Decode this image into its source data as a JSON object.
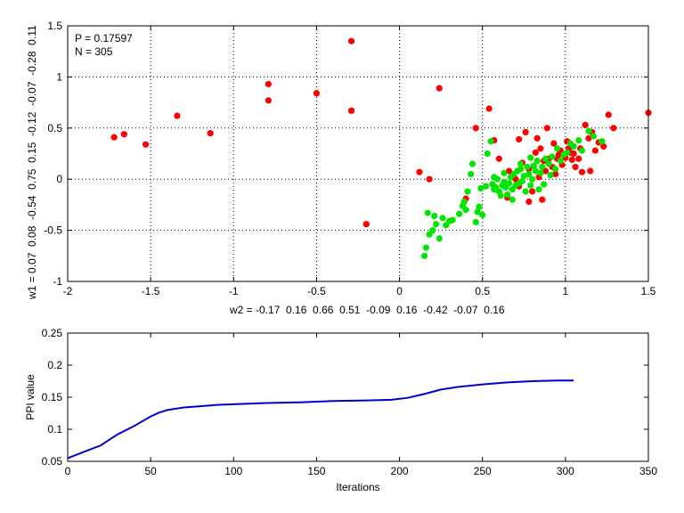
{
  "chart_data": [
    {
      "type": "scatter",
      "title": "",
      "xlabel": "w2 = -0.17  0.16  0.66  0.51  -0.09  0.16  -0.42  -0.07  0.16",
      "ylabel": "w1 = 0.07  0.08  -0.54  0.75  0.15  -0.12  -0.07  -0.28  0.11",
      "xlim": [
        -2,
        1.5
      ],
      "ylim": [
        -1,
        1.5
      ],
      "xticks": [
        "-2",
        "-1.5",
        "-1",
        "-0.5",
        "0",
        "0.5",
        "1",
        "1.5"
      ],
      "yticks": [
        "-1",
        "-0.5",
        "0",
        "0.5",
        "1",
        "1.5"
      ],
      "grid": true,
      "annotations": [
        "P = 0.17597",
        "N = 305"
      ],
      "series": [
        {
          "color": "#ff0000",
          "points": [
            [
              -1.72,
              0.41
            ],
            [
              -1.66,
              0.44
            ],
            [
              -1.53,
              0.34
            ],
            [
              -1.34,
              0.62
            ],
            [
              -1.14,
              0.45
            ],
            [
              -0.79,
              0.93
            ],
            [
              -0.79,
              0.77
            ],
            [
              -0.5,
              0.84
            ],
            [
              -0.29,
              0.67
            ],
            [
              -0.29,
              1.35
            ],
            [
              0.24,
              0.89
            ],
            [
              -0.2,
              -0.44
            ],
            [
              0.12,
              0.07
            ],
            [
              0.18,
              0.0
            ],
            [
              0.4,
              -0.19
            ],
            [
              0.46,
              0.5
            ],
            [
              0.54,
              0.69
            ],
            [
              0.57,
              0.38
            ],
            [
              0.6,
              0.2
            ],
            [
              0.66,
              0.08
            ],
            [
              0.7,
              0.0
            ],
            [
              0.72,
              0.39
            ],
            [
              0.74,
              0.16
            ],
            [
              0.76,
              0.46
            ],
            [
              0.78,
              0.1
            ],
            [
              0.8,
              -0.12
            ],
            [
              0.82,
              0.26
            ],
            [
              0.84,
              0.02
            ],
            [
              0.85,
              0.3
            ],
            [
              0.87,
              0.18
            ],
            [
              0.89,
              0.5
            ],
            [
              0.9,
              0.2
            ],
            [
              0.92,
              0.12
            ],
            [
              0.93,
              0.35
            ],
            [
              0.95,
              0.2
            ],
            [
              0.96,
              0.24
            ],
            [
              0.97,
              0.28
            ],
            [
              0.98,
              0.14
            ],
            [
              1.0,
              0.21
            ],
            [
              1.02,
              0.3
            ],
            [
              1.04,
              0.19
            ],
            [
              1.05,
              0.25
            ],
            [
              1.06,
              0.12
            ],
            [
              1.08,
              0.2
            ],
            [
              1.09,
              0.3
            ],
            [
              1.1,
              0.07
            ],
            [
              1.12,
              0.53
            ],
            [
              1.14,
              0.4
            ],
            [
              1.15,
              0.08
            ],
            [
              1.16,
              0.46
            ],
            [
              1.18,
              0.28
            ],
            [
              1.2,
              0.36
            ],
            [
              1.23,
              0.32
            ],
            [
              1.26,
              0.63
            ],
            [
              1.29,
              0.5
            ],
            [
              1.5,
              0.65
            ],
            [
              0.65,
              -0.18
            ],
            [
              0.72,
              -0.07
            ],
            [
              0.78,
              -0.22
            ],
            [
              0.88,
              0.08
            ],
            [
              0.94,
              0.05
            ],
            [
              1.01,
              0.37
            ],
            [
              0.83,
              0.4
            ],
            [
              0.86,
              -0.2
            ],
            [
              1.03,
              0.26
            ]
          ]
        },
        {
          "color": "#00e600",
          "points": [
            [
              0.15,
              -0.75
            ],
            [
              0.16,
              -0.67
            ],
            [
              0.17,
              -0.33
            ],
            [
              0.18,
              -0.54
            ],
            [
              0.2,
              -0.5
            ],
            [
              0.21,
              -0.36
            ],
            [
              0.22,
              -0.44
            ],
            [
              0.24,
              -0.58
            ],
            [
              0.26,
              -0.38
            ],
            [
              0.28,
              -0.45
            ],
            [
              0.3,
              -0.41
            ],
            [
              0.32,
              -0.4
            ],
            [
              0.36,
              -0.34
            ],
            [
              0.38,
              -0.26
            ],
            [
              0.39,
              -0.22
            ],
            [
              0.4,
              -0.3
            ],
            [
              0.41,
              -0.12
            ],
            [
              0.43,
              0.05
            ],
            [
              0.44,
              0.15
            ],
            [
              0.46,
              -0.42
            ],
            [
              0.47,
              -0.32
            ],
            [
              0.48,
              -0.27
            ],
            [
              0.49,
              -0.09
            ],
            [
              0.5,
              -0.35
            ],
            [
              0.52,
              -0.07
            ],
            [
              0.53,
              0.25
            ],
            [
              0.55,
              0.37
            ],
            [
              0.56,
              -0.05
            ],
            [
              0.57,
              -0.1
            ],
            [
              0.58,
              -0.08
            ],
            [
              0.59,
              0.0
            ],
            [
              0.6,
              -0.12
            ],
            [
              0.61,
              -0.16
            ],
            [
              0.62,
              -0.06
            ],
            [
              0.63,
              -0.03
            ],
            [
              0.64,
              -0.08
            ],
            [
              0.65,
              -0.15
            ],
            [
              0.66,
              -0.04
            ],
            [
              0.67,
              0.02
            ],
            [
              0.68,
              -0.1
            ],
            [
              0.69,
              0.05
            ],
            [
              0.7,
              -0.06
            ],
            [
              0.71,
              0.08
            ],
            [
              0.72,
              -0.04
            ],
            [
              0.73,
              0.1
            ],
            [
              0.74,
              -0.02
            ],
            [
              0.75,
              0.03
            ],
            [
              0.76,
              -0.12
            ],
            [
              0.77,
              0.12
            ],
            [
              0.78,
              0.05
            ],
            [
              0.79,
              -0.06
            ],
            [
              0.8,
              0.0
            ],
            [
              0.81,
              0.13
            ],
            [
              0.82,
              0.08
            ],
            [
              0.83,
              0.18
            ],
            [
              0.84,
              -0.1
            ],
            [
              0.85,
              0.06
            ],
            [
              0.86,
              0.12
            ],
            [
              0.87,
              -0.05
            ],
            [
              0.88,
              0.2
            ],
            [
              0.9,
              0.15
            ],
            [
              0.91,
              0.04
            ],
            [
              0.92,
              0.22
            ],
            [
              0.94,
              0.1
            ],
            [
              0.95,
              0.3
            ],
            [
              0.97,
              0.18
            ],
            [
              0.99,
              0.24
            ],
            [
              1.01,
              0.26
            ],
            [
              1.03,
              0.35
            ],
            [
              1.05,
              0.32
            ],
            [
              1.08,
              0.38
            ],
            [
              1.1,
              0.28
            ],
            [
              1.14,
              0.47
            ],
            [
              1.17,
              0.42
            ],
            [
              1.22,
              0.37
            ],
            [
              0.68,
              -0.2
            ],
            [
              0.73,
              0.15
            ],
            [
              0.79,
              0.21
            ],
            [
              0.63,
              0.06
            ],
            [
              0.57,
              0.02
            ]
          ]
        }
      ]
    },
    {
      "type": "line",
      "title": "",
      "xlabel": "Iterations",
      "ylabel": "PPI value",
      "xlim": [
        0,
        350
      ],
      "ylim": [
        0.05,
        0.25
      ],
      "xticks": [
        "0",
        "50",
        "100",
        "150",
        "200",
        "250",
        "300",
        "350"
      ],
      "yticks": [
        "0.05",
        "0.1",
        "0.15",
        "0.2",
        "0.25"
      ],
      "grid": false,
      "series": [
        {
          "color": "#0000cc",
          "points": [
            [
              0,
              0.055
            ],
            [
              10,
              0.065
            ],
            [
              20,
              0.075
            ],
            [
              30,
              0.092
            ],
            [
              40,
              0.105
            ],
            [
              50,
              0.12
            ],
            [
              55,
              0.126
            ],
            [
              60,
              0.13
            ],
            [
              70,
              0.134
            ],
            [
              80,
              0.136
            ],
            [
              90,
              0.138
            ],
            [
              100,
              0.139
            ],
            [
              120,
              0.141
            ],
            [
              140,
              0.142
            ],
            [
              160,
              0.144
            ],
            [
              180,
              0.145
            ],
            [
              195,
              0.146
            ],
            [
              205,
              0.149
            ],
            [
              215,
              0.155
            ],
            [
              225,
              0.162
            ],
            [
              235,
              0.166
            ],
            [
              250,
              0.17
            ],
            [
              265,
              0.173
            ],
            [
              280,
              0.175
            ],
            [
              295,
              0.176
            ],
            [
              305,
              0.176
            ]
          ]
        }
      ]
    }
  ]
}
